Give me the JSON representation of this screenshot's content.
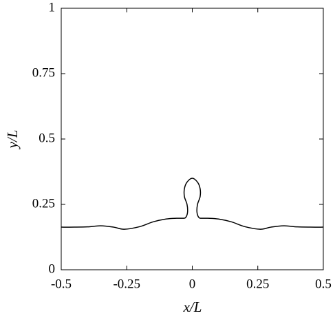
{
  "chart_data": {
    "type": "line",
    "x_label": "x/L",
    "y_label": "y/L",
    "x": [
      -0.5,
      -0.45,
      -0.4,
      -0.35,
      -0.3,
      -0.26,
      -0.2,
      -0.15,
      -0.1,
      -0.06,
      -0.035,
      -0.025,
      -0.018,
      -0.02,
      -0.03,
      -0.03,
      -0.02,
      0,
      0.02,
      0.03,
      0.03,
      0.02,
      0.018,
      0.025,
      0.035,
      0.06,
      0.1,
      0.15,
      0.2,
      0.26,
      0.3,
      0.35,
      0.4,
      0.45,
      0.5
    ],
    "y": [
      0.163,
      0.163,
      0.164,
      0.168,
      0.163,
      0.155,
      0.165,
      0.183,
      0.194,
      0.197,
      0.197,
      0.2,
      0.22,
      0.25,
      0.28,
      0.31,
      0.335,
      0.35,
      0.335,
      0.31,
      0.28,
      0.25,
      0.22,
      0.2,
      0.197,
      0.197,
      0.194,
      0.183,
      0.165,
      0.155,
      0.163,
      0.168,
      0.164,
      0.163,
      0.163
    ],
    "color": "#000000",
    "xlim": [
      -0.5,
      0.5
    ],
    "xticks": [
      -0.5,
      -0.25,
      0,
      0.25,
      0.5
    ],
    "ylim": [
      0,
      1
    ],
    "yticks": [
      0,
      0.25,
      0.5,
      0.75,
      1
    ],
    "grid": false
  }
}
